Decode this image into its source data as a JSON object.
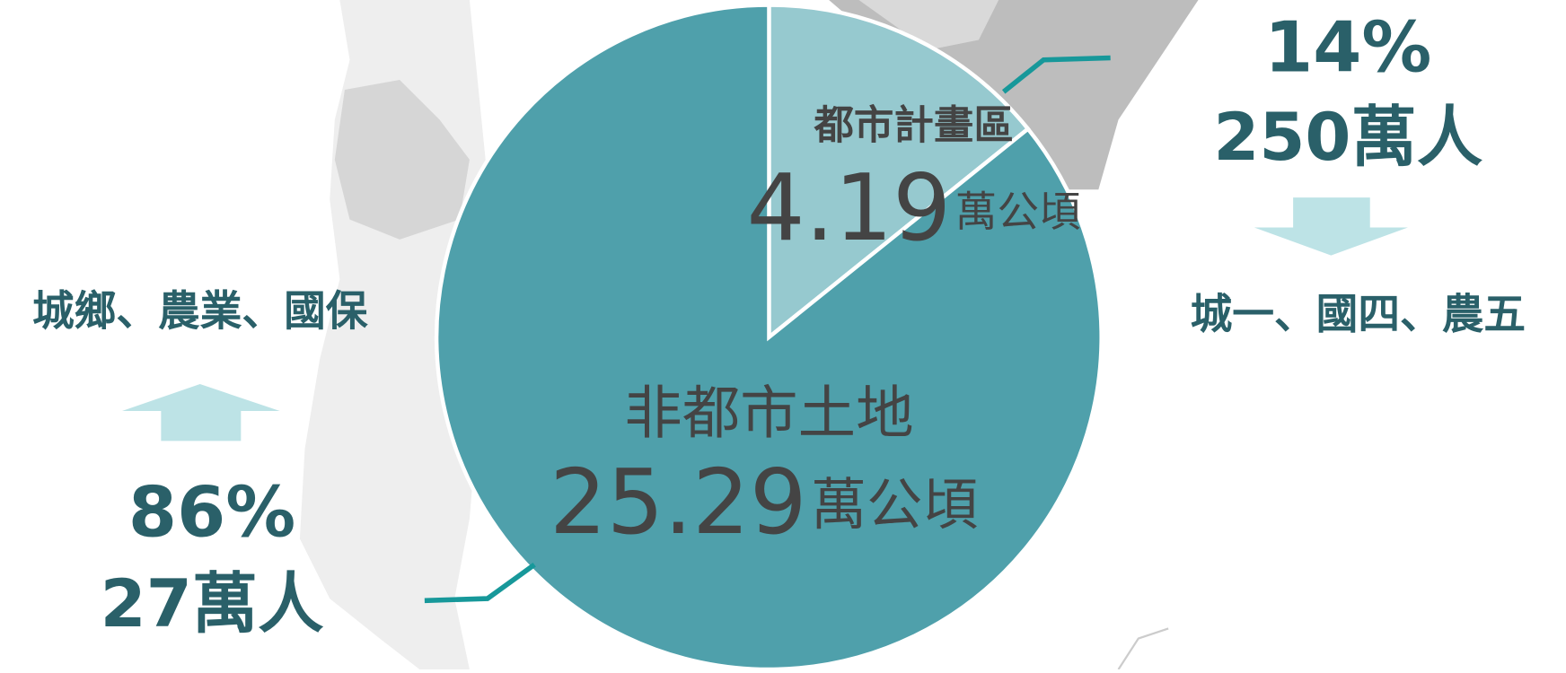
{
  "chart_data": {
    "type": "pie",
    "categories": [
      "都市計畫區",
      "非都市土地"
    ],
    "values": [
      4.19,
      25.29
    ],
    "unit": "萬公頃",
    "colors": [
      "#96c9cf",
      "#4fa0ab"
    ],
    "annotations": {
      "urban_percent": "14%",
      "urban_population": "250萬人",
      "urban_zones": "城一、國四、農五",
      "rural_percent": "86%",
      "rural_population": "27萬人",
      "rural_zones": "城鄉、農業、國保"
    }
  }
}
